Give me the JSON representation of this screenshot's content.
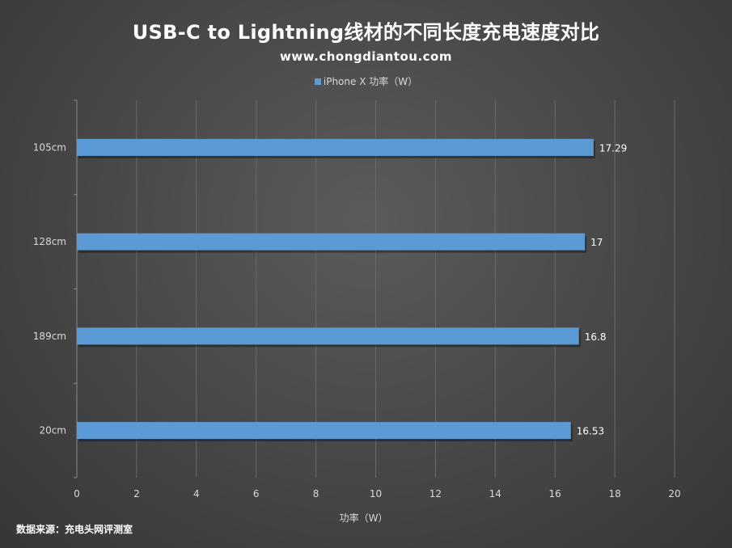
{
  "chart_data": {
    "type": "bar",
    "orientation": "horizontal",
    "title": "USB-C to Lightning线材的不同长度充电速度对比",
    "subtitle": "www.chongdiantou.com",
    "categories": [
      "105cm",
      "128cm",
      "189cm",
      "20cm"
    ],
    "series": [
      {
        "name": "iPhone X 功率（W）",
        "values": [
          17.29,
          17,
          16.8,
          16.53
        ],
        "color": "#5b9bd5"
      }
    ],
    "data_labels": [
      "17.29",
      "17",
      "16.8",
      "16.53"
    ],
    "xlabel": "功率（W）",
    "ylabel": "",
    "xlim": [
      0,
      20
    ],
    "xticks": [
      0,
      2,
      4,
      6,
      8,
      10,
      12,
      14,
      16,
      18,
      20
    ],
    "grid": true,
    "legend_position": "top"
  },
  "source_note": "数据来源：充电头网评测室"
}
